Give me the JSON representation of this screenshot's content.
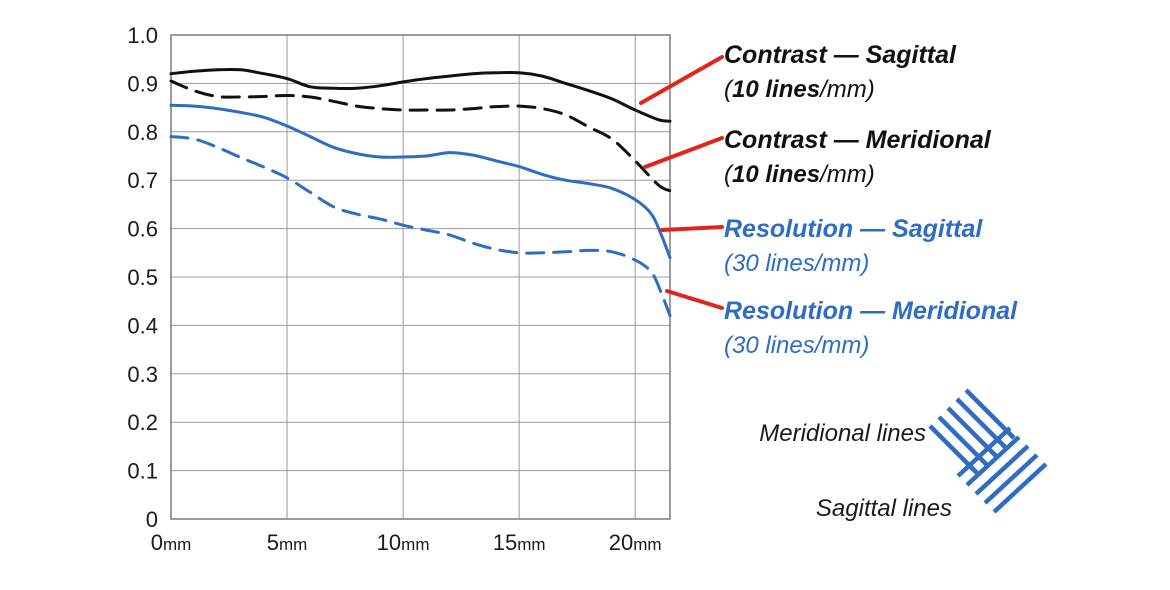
{
  "chart_data": {
    "type": "line",
    "x_unit": "mm",
    "xlim": [
      0,
      21.5
    ],
    "ylim": [
      0,
      1.0
    ],
    "x_ticks": [
      0,
      5,
      10,
      15,
      20
    ],
    "y_ticks": [
      0,
      0.1,
      0.2,
      0.3,
      0.4,
      0.5,
      0.6,
      0.7,
      0.8,
      0.9,
      1.0
    ],
    "y_tick_labels": [
      "0",
      "0.1",
      "0.2",
      "0.3",
      "0.4",
      "0.5",
      "0.6",
      "0.7",
      "0.8",
      "0.9",
      "1.0"
    ],
    "x_tick_labels": [
      {
        "num": "0",
        "unit": "mm"
      },
      {
        "num": "5",
        "unit": "mm"
      },
      {
        "num": "10",
        "unit": "mm"
      },
      {
        "num": "15",
        "unit": "mm"
      },
      {
        "num": "20",
        "unit": "mm"
      }
    ],
    "grid": true,
    "series": [
      {
        "key": "contrast-sagittal",
        "line_color": "#111111",
        "label_color": "#111111",
        "dashed": false,
        "label_line1_bold": "Contrast — Sagittal",
        "label_line2_open": "(",
        "label_line2_bold": "10 lines",
        "label_line2_rest": "/mm)",
        "points": [
          [
            0,
            0.92
          ],
          [
            1,
            0.925
          ],
          [
            2,
            0.928
          ],
          [
            3,
            0.928
          ],
          [
            4,
            0.92
          ],
          [
            5,
            0.91
          ],
          [
            6,
            0.893
          ],
          [
            7,
            0.89
          ],
          [
            8,
            0.89
          ],
          [
            9,
            0.895
          ],
          [
            10,
            0.903
          ],
          [
            11,
            0.91
          ],
          [
            12,
            0.915
          ],
          [
            13,
            0.92
          ],
          [
            14,
            0.922
          ],
          [
            15,
            0.922
          ],
          [
            16,
            0.915
          ],
          [
            17,
            0.9
          ],
          [
            18,
            0.885
          ],
          [
            19,
            0.868
          ],
          [
            20,
            0.845
          ],
          [
            21,
            0.825
          ],
          [
            21.5,
            0.822
          ]
        ]
      },
      {
        "key": "contrast-meridional",
        "line_color": "#111111",
        "label_color": "#111111",
        "dashed": true,
        "label_line1_bold": "Contrast — Meridional",
        "label_line2_open": "(",
        "label_line2_bold": "10 lines",
        "label_line2_rest": "/mm)",
        "points": [
          [
            0,
            0.905
          ],
          [
            1,
            0.885
          ],
          [
            2,
            0.873
          ],
          [
            3,
            0.872
          ],
          [
            4,
            0.873
          ],
          [
            5,
            0.875
          ],
          [
            6,
            0.872
          ],
          [
            7,
            0.863
          ],
          [
            8,
            0.853
          ],
          [
            9,
            0.848
          ],
          [
            10,
            0.845
          ],
          [
            11,
            0.845
          ],
          [
            12,
            0.845
          ],
          [
            13,
            0.848
          ],
          [
            14,
            0.852
          ],
          [
            15,
            0.853
          ],
          [
            16,
            0.848
          ],
          [
            17,
            0.835
          ],
          [
            18,
            0.81
          ],
          [
            19,
            0.785
          ],
          [
            20,
            0.74
          ],
          [
            21,
            0.69
          ],
          [
            21.5,
            0.678
          ]
        ]
      },
      {
        "key": "resolution-sagittal",
        "line_color": "#2f6cc4",
        "label_color": "#2f6cc4",
        "dashed": false,
        "label_line1_bold": "Resolution — Sagittal",
        "label_line2_open": "",
        "label_line2_bold": "",
        "label_line2_rest": "(30 lines/mm)",
        "points": [
          [
            0,
            0.855
          ],
          [
            1,
            0.853
          ],
          [
            2,
            0.848
          ],
          [
            3,
            0.84
          ],
          [
            4,
            0.83
          ],
          [
            5,
            0.812
          ],
          [
            6,
            0.79
          ],
          [
            7,
            0.768
          ],
          [
            8,
            0.755
          ],
          [
            9,
            0.748
          ],
          [
            10,
            0.748
          ],
          [
            11,
            0.75
          ],
          [
            12,
            0.757
          ],
          [
            13,
            0.752
          ],
          [
            14,
            0.74
          ],
          [
            15,
            0.728
          ],
          [
            16,
            0.712
          ],
          [
            17,
            0.7
          ],
          [
            18,
            0.693
          ],
          [
            19,
            0.683
          ],
          [
            20,
            0.66
          ],
          [
            20.7,
            0.63
          ],
          [
            21.1,
            0.59
          ],
          [
            21.5,
            0.54
          ]
        ]
      },
      {
        "key": "resolution-meridional",
        "line_color": "#2f6cc4",
        "label_color": "#2f6cc4",
        "dashed": true,
        "label_line1_bold": "Resolution — Meridional",
        "label_line2_open": "",
        "label_line2_bold": "",
        "label_line2_rest": "(30 lines/mm)",
        "points": [
          [
            0,
            0.79
          ],
          [
            1,
            0.785
          ],
          [
            2,
            0.768
          ],
          [
            3,
            0.747
          ],
          [
            4,
            0.727
          ],
          [
            5,
            0.705
          ],
          [
            6,
            0.675
          ],
          [
            7,
            0.645
          ],
          [
            8,
            0.63
          ],
          [
            9,
            0.62
          ],
          [
            10,
            0.607
          ],
          [
            11,
            0.597
          ],
          [
            12,
            0.587
          ],
          [
            13,
            0.57
          ],
          [
            14,
            0.557
          ],
          [
            15,
            0.55
          ],
          [
            16,
            0.55
          ],
          [
            17,
            0.552
          ],
          [
            18,
            0.555
          ],
          [
            19,
            0.552
          ],
          [
            20,
            0.535
          ],
          [
            20.7,
            0.51
          ],
          [
            21.1,
            0.47
          ],
          [
            21.5,
            0.42
          ]
        ]
      }
    ],
    "legend": {
      "placement": "right",
      "line_type_labels": [
        "Meridional lines",
        "Sagittal lines"
      ]
    }
  }
}
